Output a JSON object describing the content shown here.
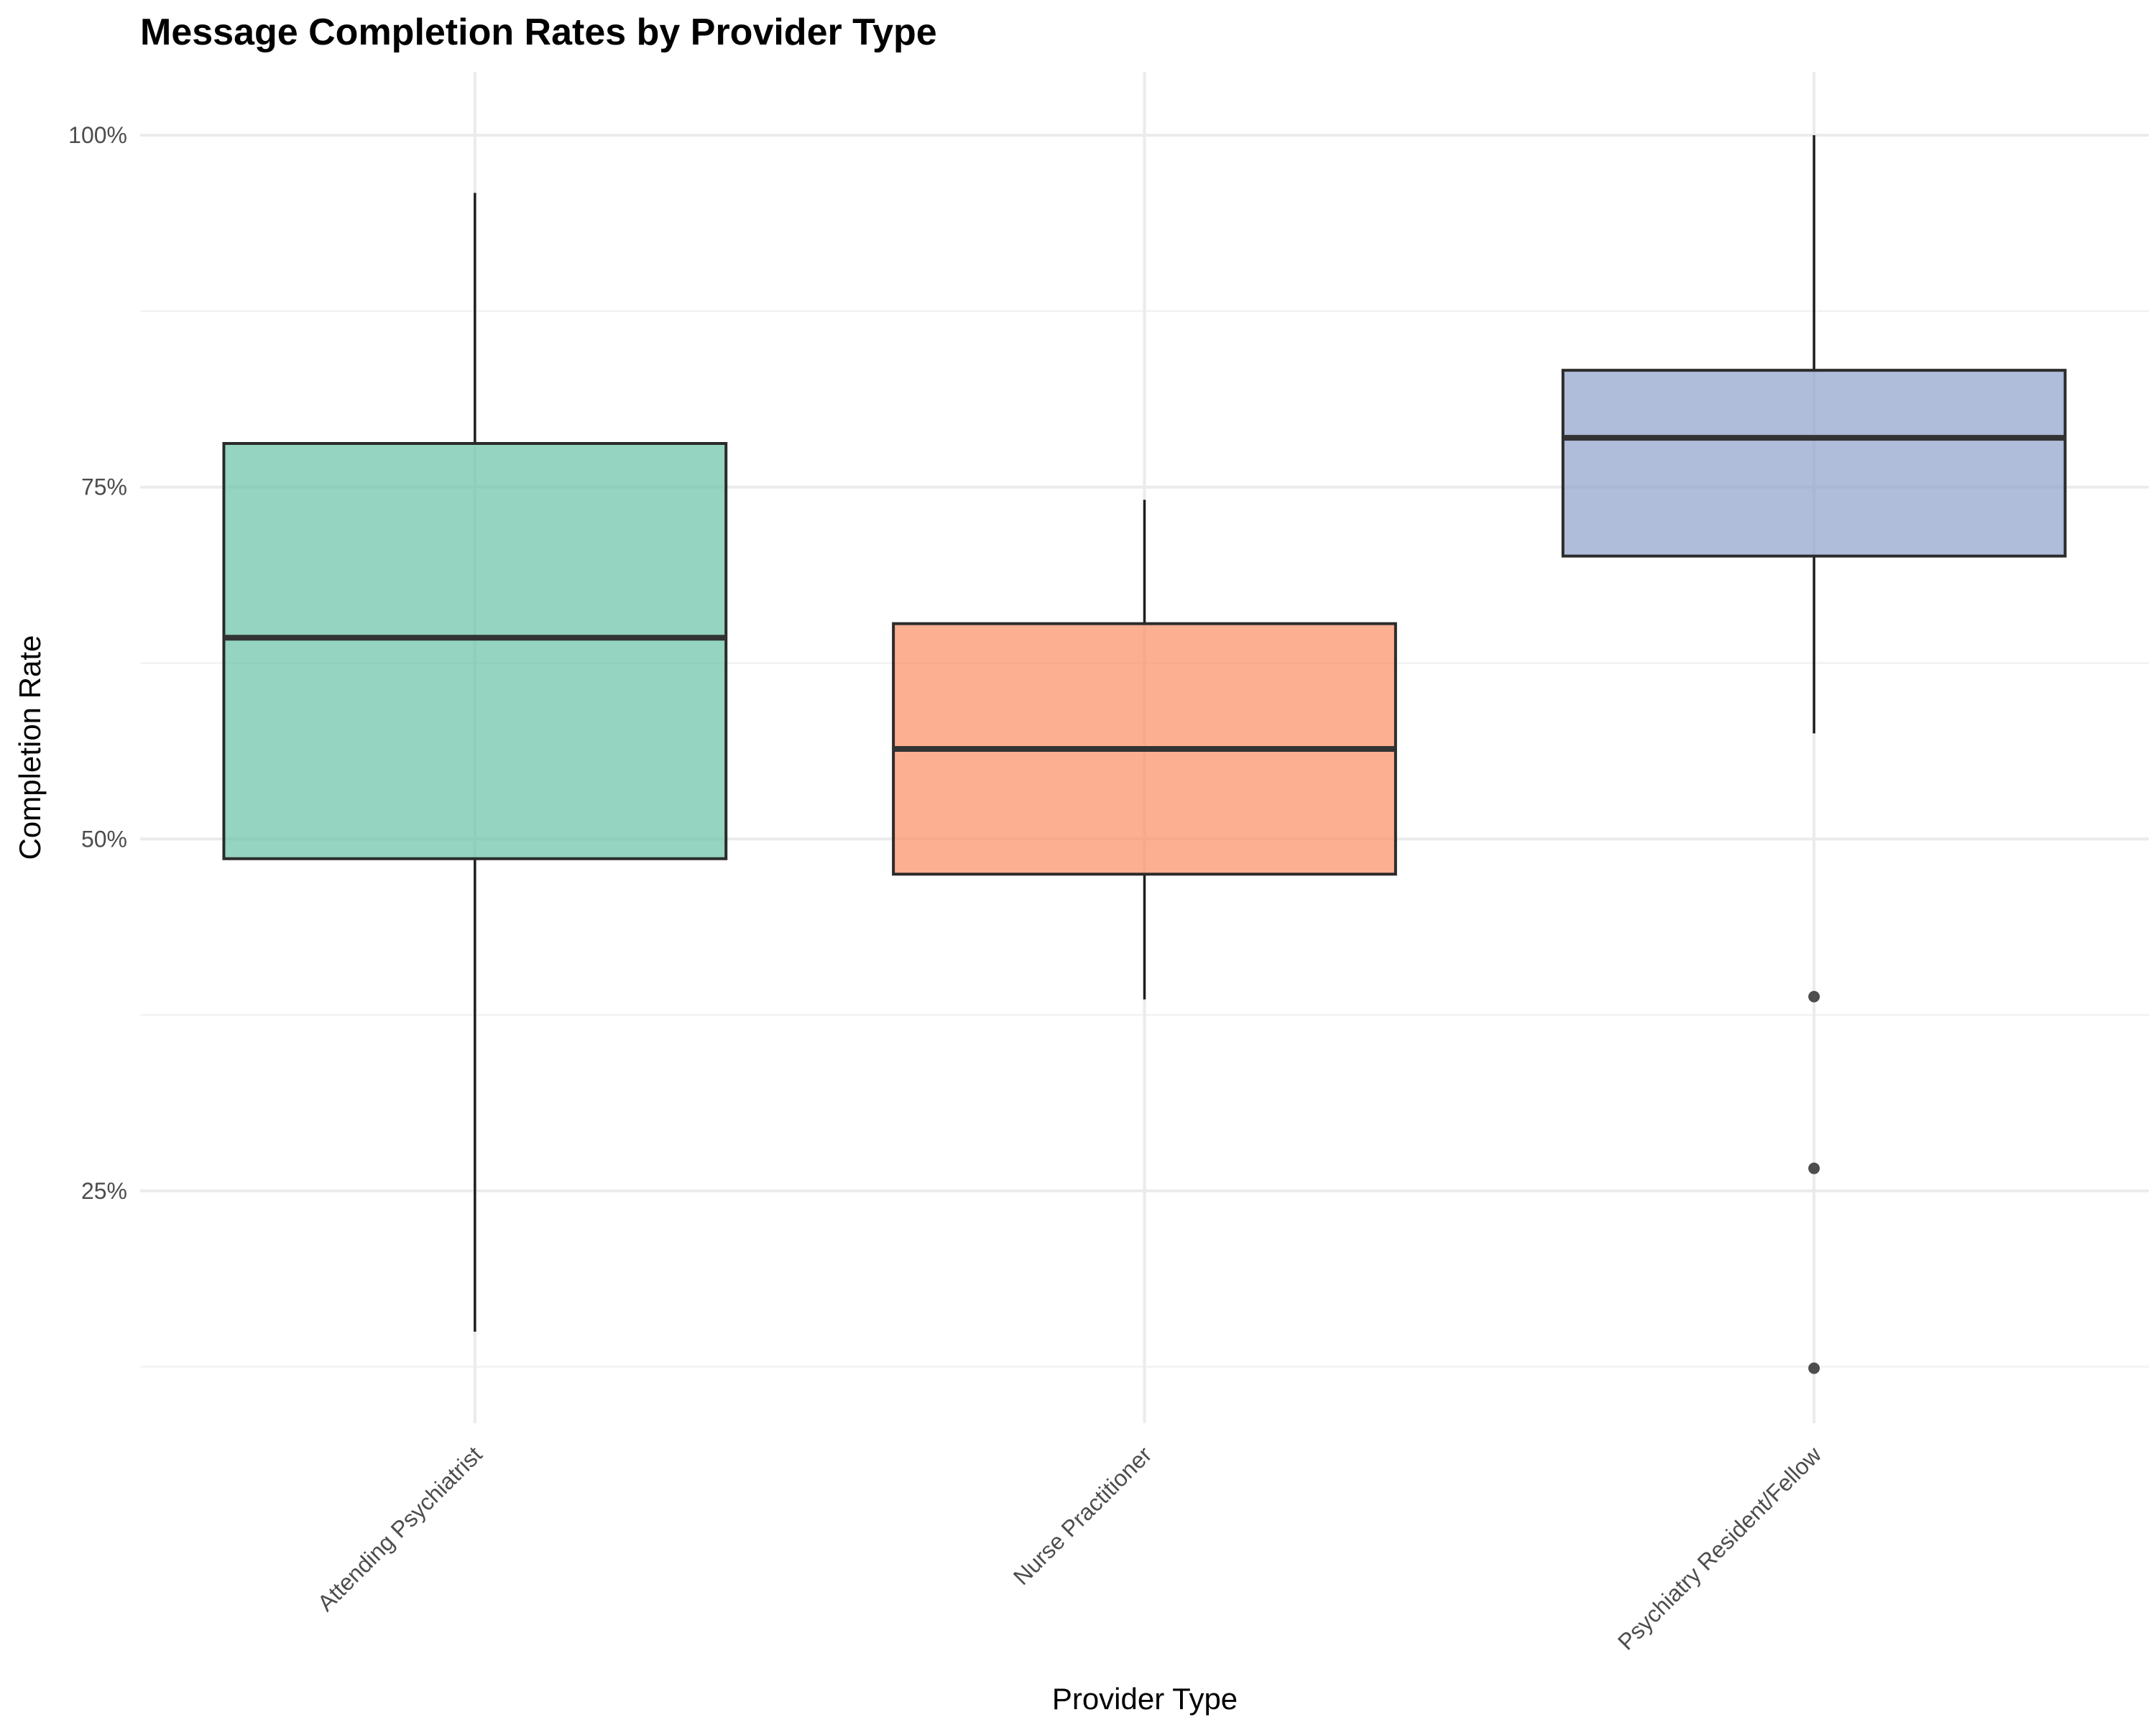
{
  "chart_data": {
    "type": "boxplot",
    "title": "Message Completion Rates by Provider Type",
    "xlabel": "Provider Type",
    "ylabel": "Completion Rate",
    "ylim": [
      0.085,
      1.045
    ],
    "y_ticks": [
      0.25,
      0.5,
      0.75,
      1.0
    ],
    "y_tick_labels": [
      "25%",
      "50%",
      "75%",
      "100%"
    ],
    "y_minor_ticks": [
      0.125,
      0.375,
      0.625,
      0.875
    ],
    "grid": true,
    "categories": [
      "Attending Psychiatrist",
      "Nurse Practitioner",
      "Psychiatry Resident/Fellow"
    ],
    "colors": [
      "#66c2a5",
      "#fc8d62",
      "#8da0cb"
    ],
    "boxes": [
      {
        "category": "Attending Psychiatrist",
        "whisker_low": 0.15,
        "q1": 0.486,
        "median": 0.643,
        "q3": 0.781,
        "whisker_high": 0.959,
        "outliers": []
      },
      {
        "category": "Nurse Practitioner",
        "whisker_low": 0.386,
        "q1": 0.475,
        "median": 0.564,
        "q3": 0.653,
        "whisker_high": 0.741,
        "outliers": []
      },
      {
        "category": "Psychiatry Resident/Fellow",
        "whisker_low": 0.575,
        "q1": 0.701,
        "median": 0.785,
        "q3": 0.833,
        "whisker_high": 1.0,
        "outliers": [
          0.388,
          0.266,
          0.124
        ]
      }
    ]
  }
}
